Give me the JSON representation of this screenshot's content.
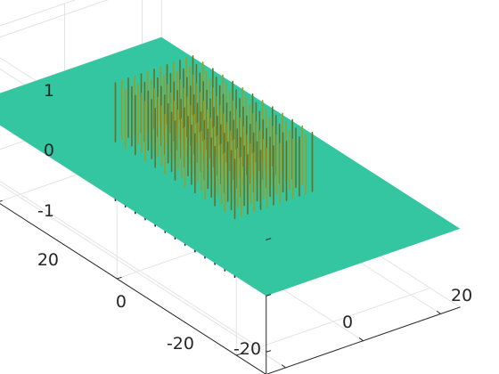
{
  "chart_data": {
    "type": "surface",
    "title": "",
    "xlabel": "",
    "ylabel": "",
    "zlabel": "",
    "xlim": [
      -25,
      25
    ],
    "ylim": [
      -25,
      25
    ],
    "zlim": [
      -1.4,
      1.2
    ],
    "x_ticks": [
      "-20",
      "0",
      "20"
    ],
    "y_ticks": [
      "-20",
      "0",
      "20"
    ],
    "z_ticks": [
      "-1",
      "0",
      "1"
    ],
    "grid": true,
    "colormap": "parula",
    "surface": {
      "base_level": 0,
      "description_of_values": "flat plane at z=0 with a square region of narrow spikes",
      "spike_region": {
        "x_range": [
          -10,
          10
        ],
        "y_range": [
          -10,
          10
        ]
      },
      "spike_grid_count": 13,
      "spike_max": 1.05,
      "spike_min": -1.05
    },
    "colors": {
      "plane": "#33c6a0",
      "spike_high": "#a39a20",
      "spike_high_shade": "#6f6d1e",
      "spike_low": "#1f2d80",
      "spike_low_shade": "#17205e",
      "axis": "#262626",
      "grid": "#e3e3e3"
    }
  }
}
